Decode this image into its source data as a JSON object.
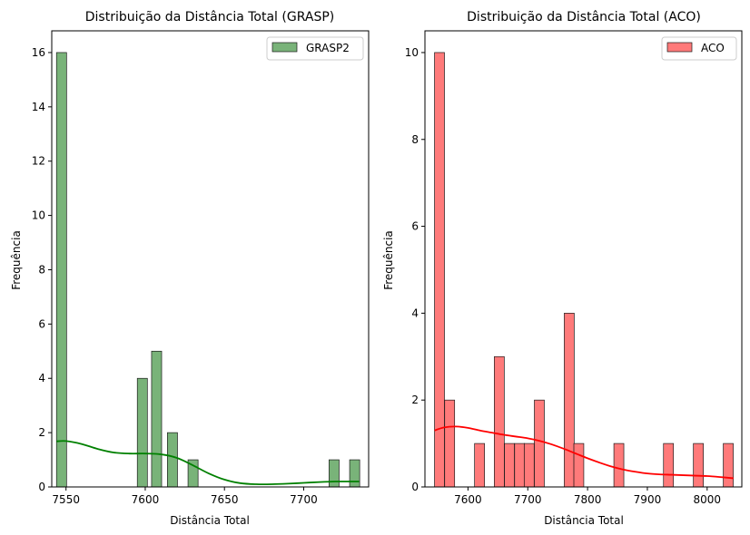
{
  "chart_data": [
    {
      "type": "histogram",
      "title": "Distribuição da Distância Total (GRASP)",
      "xlabel": "Distância Total",
      "ylabel": "Frequência",
      "xlim": [
        7541,
        7741
      ],
      "ylim": [
        0,
        16.8
      ],
      "xticks": [
        7550,
        7600,
        7650,
        7700
      ],
      "yticks": [
        0,
        2,
        4,
        6,
        8,
        10,
        12,
        14,
        16
      ],
      "grid": false,
      "legend": {
        "position": "upper right",
        "entries": [
          "GRASP2"
        ]
      },
      "series": [
        {
          "name": "GRASP2",
          "color": "#4c9a4c",
          "kde_color": "#008000",
          "bin_width": 6.35,
          "bins": [
            {
              "x0": 7544,
              "count": 16
            },
            {
              "x0": 7595,
              "count": 4
            },
            {
              "x0": 7604,
              "count": 5
            },
            {
              "x0": 7614,
              "count": 2
            },
            {
              "x0": 7627,
              "count": 1
            },
            {
              "x0": 7716,
              "count": 1
            },
            {
              "x0": 7729,
              "count": 1
            }
          ],
          "kde": {
            "x": [
              7544,
              7550,
              7560,
              7570,
              7580,
              7590,
              7600,
              7610,
              7620,
              7630,
              7640,
              7650,
              7660,
              7670,
              7680,
              7690,
              7700,
              7710,
              7720,
              7730,
              7735
            ],
            "y": [
              1.68,
              1.69,
              1.58,
              1.4,
              1.27,
              1.23,
              1.23,
              1.2,
              1.07,
              0.8,
              0.5,
              0.27,
              0.14,
              0.1,
              0.1,
              0.12,
              0.15,
              0.18,
              0.2,
              0.2,
              0.2
            ]
          }
        }
      ]
    },
    {
      "type": "histogram",
      "title": "Distribuição da Distância Total (ACO)",
      "xlabel": "Distância Total",
      "ylabel": "Frequência",
      "xlim": [
        7528,
        8058
      ],
      "ylim": [
        0,
        10.5
      ],
      "xticks": [
        7600,
        7700,
        7800,
        7900,
        8000
      ],
      "yticks": [
        0,
        2,
        4,
        6,
        8,
        10
      ],
      "grid": false,
      "legend": {
        "position": "upper right",
        "entries": [
          "ACO"
        ]
      },
      "series": [
        {
          "name": "ACO",
          "color": "#ff6b6b",
          "kde_color": "#ff0000",
          "bin_width": 16.65,
          "bins": [
            {
              "x0": 7544,
              "count": 10
            },
            {
              "x0": 7561,
              "count": 2
            },
            {
              "x0": 7611,
              "count": 1
            },
            {
              "x0": 7644,
              "count": 3
            },
            {
              "x0": 7661,
              "count": 1
            },
            {
              "x0": 7678,
              "count": 1
            },
            {
              "x0": 7694,
              "count": 1
            },
            {
              "x0": 7711,
              "count": 2
            },
            {
              "x0": 7761,
              "count": 4
            },
            {
              "x0": 7777,
              "count": 1
            },
            {
              "x0": 7844,
              "count": 1
            },
            {
              "x0": 7927,
              "count": 1
            },
            {
              "x0": 7977,
              "count": 1
            },
            {
              "x0": 8027,
              "count": 1
            }
          ],
          "kde": {
            "x": [
              7544,
              7560,
              7580,
              7600,
              7620,
              7640,
              7660,
              7680,
              7700,
              7720,
              7740,
              7760,
              7780,
              7800,
              7820,
              7840,
              7860,
              7880,
              7900,
              7920,
              7940,
              7960,
              7980,
              8000,
              8020,
              8044
            ],
            "y": [
              1.3,
              1.37,
              1.39,
              1.36,
              1.3,
              1.25,
              1.2,
              1.16,
              1.12,
              1.06,
              0.98,
              0.88,
              0.77,
              0.66,
              0.56,
              0.47,
              0.4,
              0.35,
              0.31,
              0.29,
              0.28,
              0.27,
              0.26,
              0.25,
              0.23,
              0.2
            ]
          }
        }
      ]
    }
  ]
}
